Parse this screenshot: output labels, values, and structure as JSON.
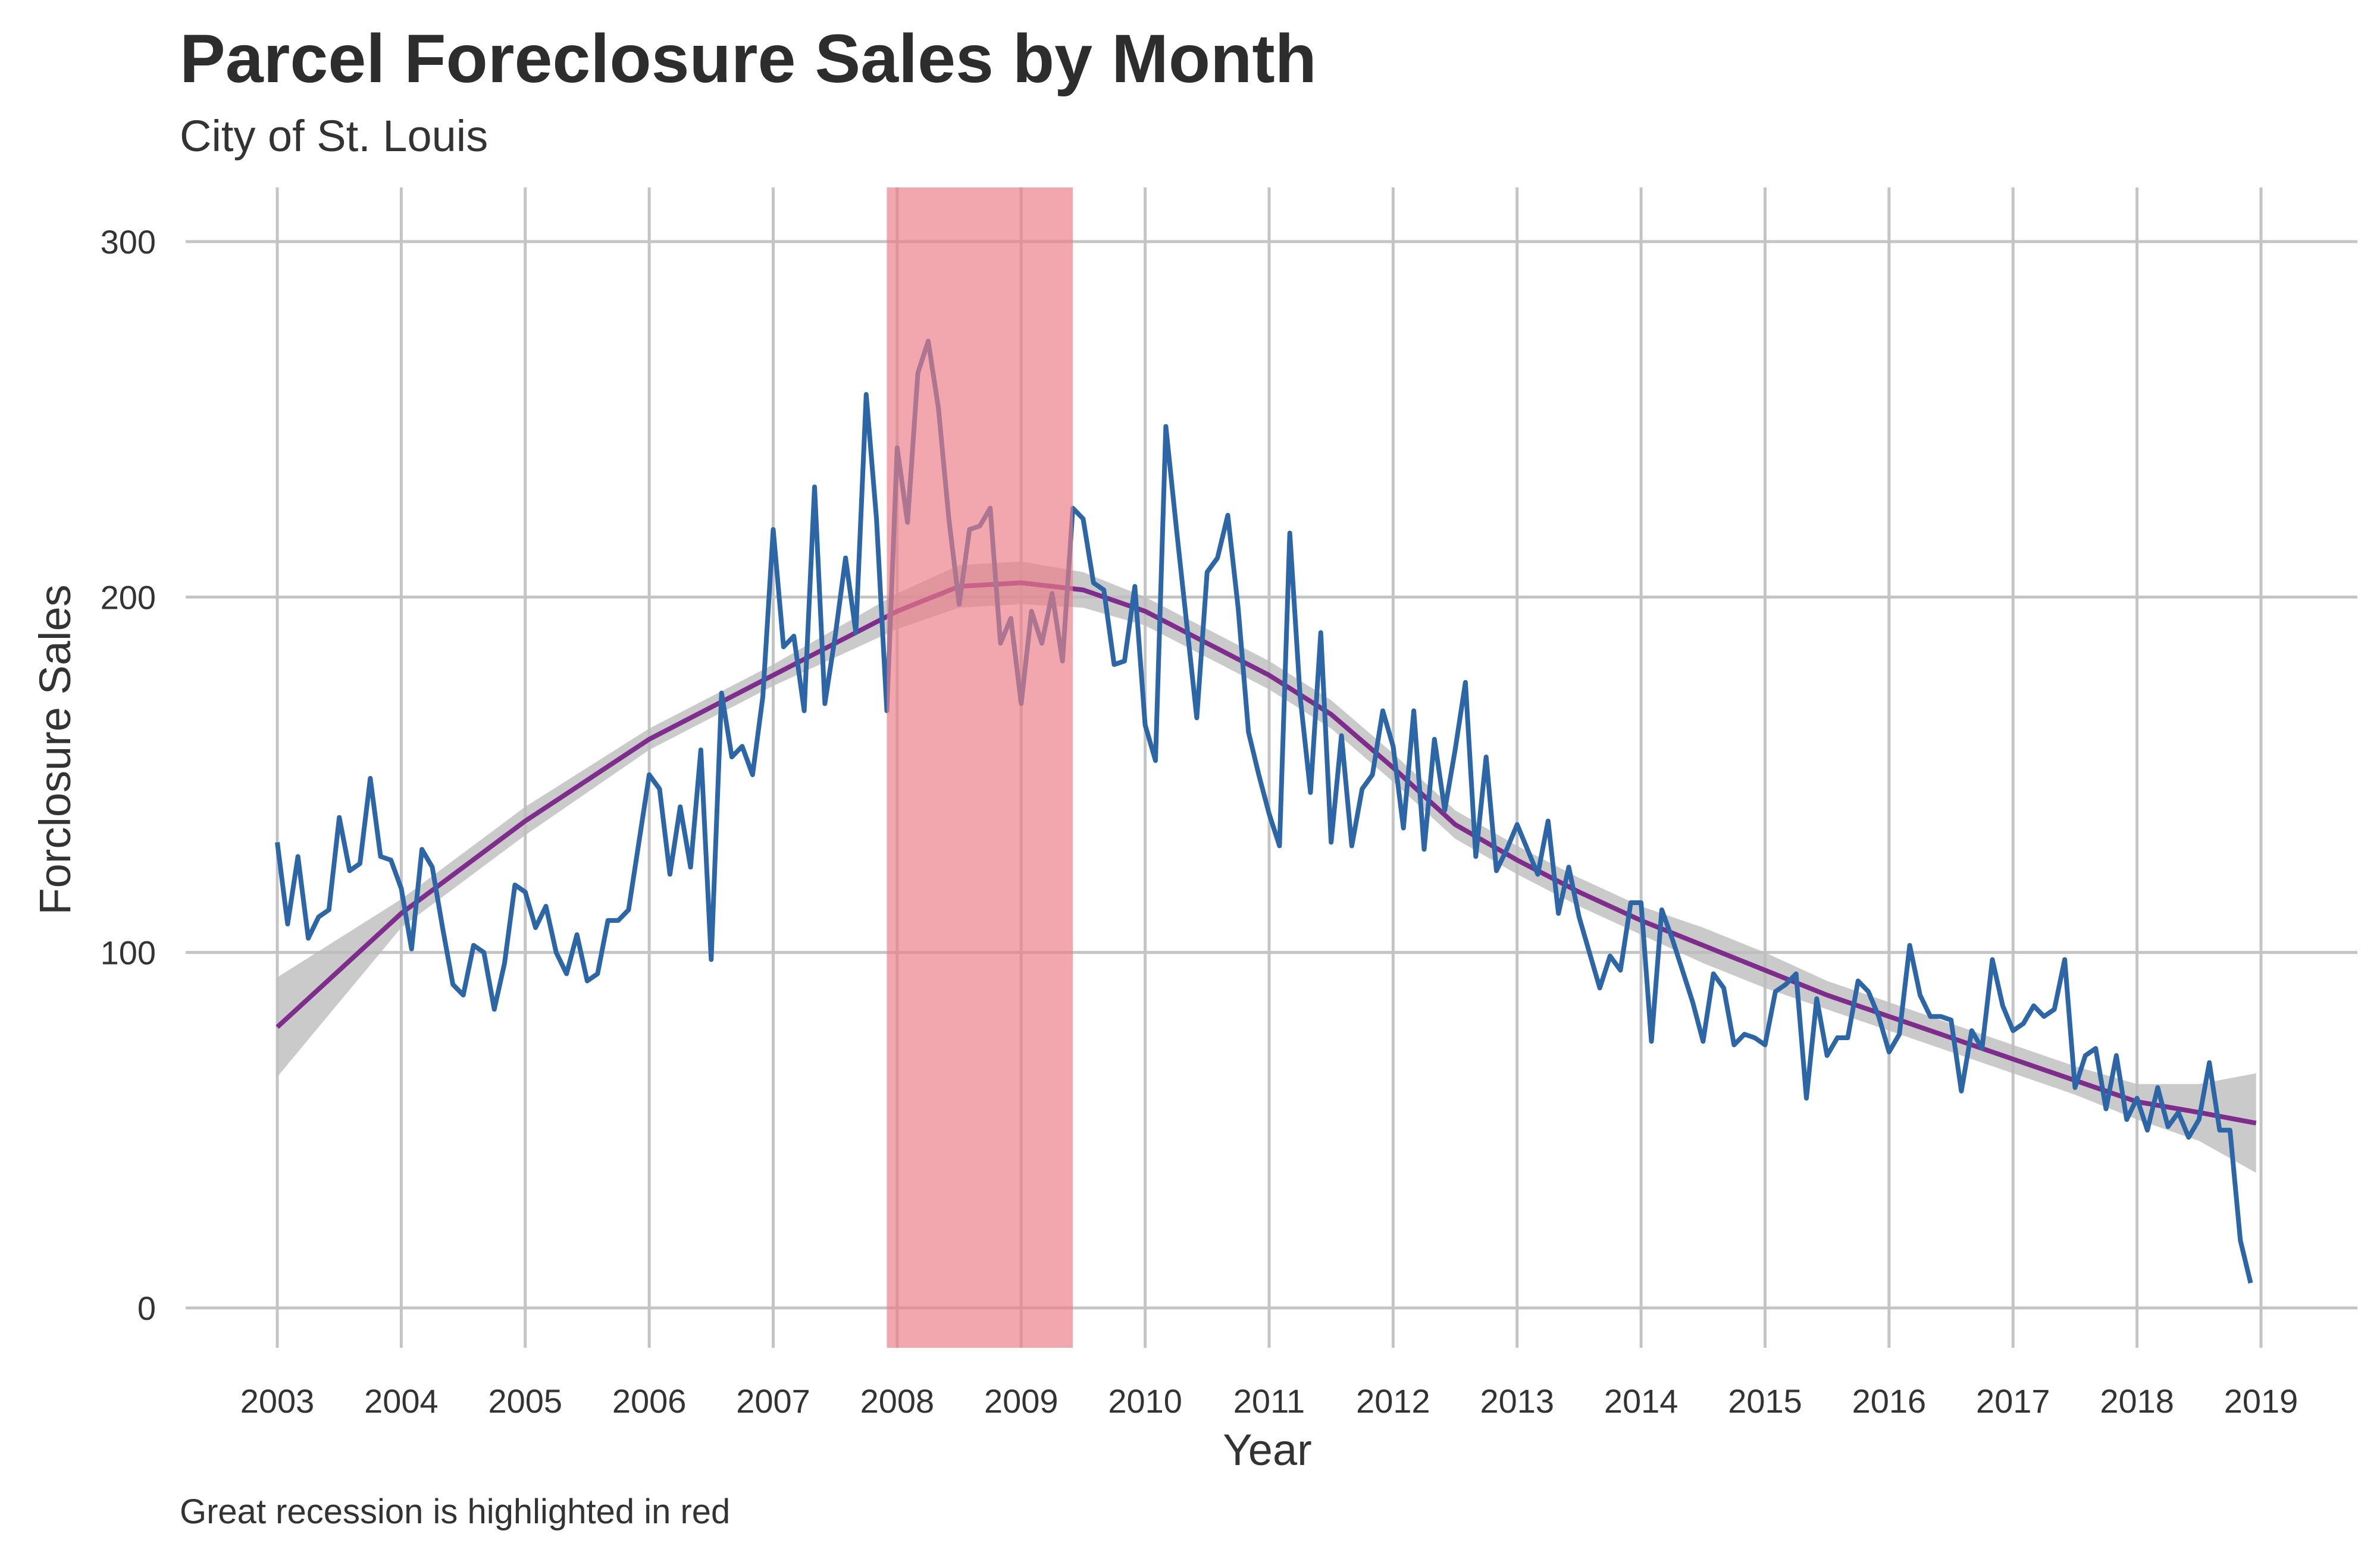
{
  "title": "Parcel Foreclosure Sales by Month",
  "subtitle": "City of St. Louis",
  "caption": "Great recession is highlighted in red",
  "colors": {
    "series": "#2c66a6",
    "trend": "#7e2d8c",
    "confidence_band": "#bdbdbd",
    "recession": "#ec7c87",
    "grid": "#c4c4c4",
    "text": "#333333"
  },
  "chart_data": {
    "type": "line",
    "xlabel": "Year",
    "ylabel": "Forclosure Sales",
    "xlim": [
      2003,
      2019
    ],
    "ylim": [
      0,
      300
    ],
    "x_ticks": [
      "2003",
      "2004",
      "2005",
      "2006",
      "2007",
      "2008",
      "2009",
      "2010",
      "2011",
      "2012",
      "2013",
      "2014",
      "2015",
      "2016",
      "2017",
      "2018",
      "2019"
    ],
    "y_ticks": [
      "0",
      "100",
      "200",
      "300"
    ],
    "grid": true,
    "highlight": {
      "label": "Great recession",
      "x_start": "2007-12",
      "x_end": "2009-06"
    },
    "series": [
      {
        "x_start": "2003-01",
        "frequency": "monthly",
        "values": [
          131,
          108,
          127,
          104,
          110,
          112,
          138,
          123,
          125,
          149,
          127,
          126,
          118,
          101,
          129,
          124,
          107,
          91,
          88,
          102,
          100,
          84,
          97,
          119,
          117,
          107,
          113,
          100,
          94,
          105,
          92,
          94,
          109,
          109,
          112,
          131,
          150,
          146,
          122,
          141,
          124,
          157,
          98,
          173,
          155,
          158,
          150,
          172,
          219,
          186,
          189,
          168,
          231,
          170,
          189,
          211,
          190,
          257,
          222,
          168,
          242,
          221,
          263,
          272,
          253,
          222,
          198,
          219,
          220,
          225,
          187,
          194,
          170,
          196,
          187,
          201,
          182,
          225,
          222,
          204,
          202,
          181,
          182,
          203,
          164,
          154,
          248,
          220,
          193,
          166,
          207,
          211,
          223,
          197,
          162,
          150,
          139,
          130,
          218,
          172,
          145,
          190,
          131,
          161,
          130,
          146,
          150,
          168,
          158,
          135,
          168,
          129,
          160,
          140,
          157,
          176,
          127,
          155,
          123,
          129,
          136,
          129,
          122,
          137,
          111,
          124,
          110,
          100,
          90,
          99,
          95,
          114,
          114,
          75,
          112,
          104,
          95,
          86,
          75,
          94,
          90,
          74,
          77,
          76,
          74,
          89,
          91,
          94,
          59,
          87,
          71,
          76,
          76,
          92,
          89,
          82,
          72,
          77,
          102,
          88,
          82,
          82,
          81,
          61,
          78,
          73,
          98,
          85,
          78,
          80,
          85,
          82,
          84,
          98,
          62,
          71,
          73,
          56,
          71,
          53,
          59,
          50,
          62,
          51,
          55,
          48,
          53,
          69,
          50,
          50,
          19,
          7
        ]
      },
      {
        "name": "trend",
        "kind": "smoothed fit",
        "x": [
          2003.0,
          2004.0,
          2005.0,
          2006.0,
          2007.0,
          2007.5,
          2008.0,
          2008.5,
          2009.0,
          2009.5,
          2010.0,
          2010.5,
          2011.0,
          2011.5,
          2012.0,
          2012.5,
          2013.0,
          2013.5,
          2014.0,
          2014.5,
          2015.0,
          2015.5,
          2016.0,
          2016.5,
          2017.0,
          2017.5,
          2018.0,
          2018.5,
          2018.96
        ],
        "values": [
          79,
          111,
          137,
          160,
          178,
          187,
          196,
          203,
          204,
          202,
          196,
          187,
          178,
          167,
          152,
          136,
          126,
          117,
          109,
          102,
          95,
          88,
          82,
          76,
          70,
          64,
          58,
          55,
          52
        ],
        "lower": [
          65,
          107,
          133,
          157,
          175,
          183,
          191,
          197,
          198,
          197,
          192,
          183,
          174,
          163,
          148,
          132,
          122,
          113,
          105,
          97,
          90,
          84,
          78,
          72,
          66,
          60,
          53,
          47,
          38
        ],
        "upper": [
          93,
          115,
          141,
          163,
          181,
          191,
          201,
          209,
          210,
          207,
          200,
          191,
          182,
          171,
          156,
          140,
          130,
          121,
          113,
          107,
          100,
          92,
          86,
          80,
          74,
          68,
          63,
          63,
          66
        ]
      }
    ]
  }
}
